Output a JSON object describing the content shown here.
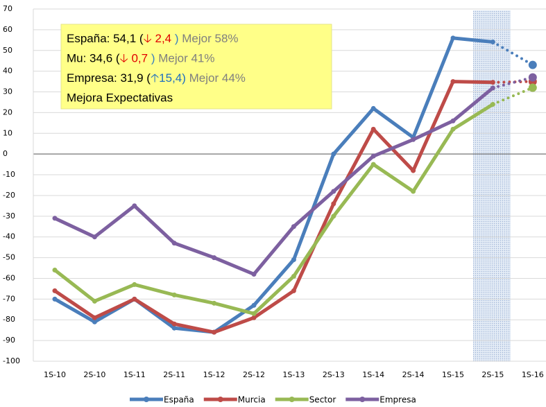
{
  "chart_data": {
    "type": "line",
    "categories": [
      "1S-10",
      "2S-10",
      "1S-11",
      "2S-11",
      "1S-12",
      "2S-12",
      "1S-13",
      "2S-13",
      "1S-14",
      "2S-14",
      "1S-15",
      "2S-15",
      "1S-16"
    ],
    "series": [
      {
        "name": "España",
        "color": "#4a7ebb",
        "values": [
          -70,
          -81,
          -70,
          -84,
          -86,
          -73,
          -51,
          0,
          22,
          8,
          56,
          54.1,
          43
        ]
      },
      {
        "name": "Murcia",
        "color": "#be4b48",
        "values": [
          -66,
          -79,
          -70,
          -82,
          -86,
          -79,
          -66,
          -24,
          12,
          -8,
          35,
          34.6,
          35
        ]
      },
      {
        "name": "Sector",
        "color": "#98b954",
        "values": [
          -56,
          -71,
          -63,
          -68,
          -72,
          -77,
          -59,
          -30,
          -5,
          -18,
          12,
          24,
          32
        ]
      },
      {
        "name": "Empresa",
        "color": "#7d60a0",
        "values": [
          -31,
          -40,
          -25,
          -43,
          -50,
          -58,
          -35,
          -18,
          -1,
          7,
          16,
          31.9,
          37
        ]
      }
    ],
    "ylim": [
      -100,
      70
    ],
    "yticks": [
      -100,
      -90,
      -80,
      -70,
      -60,
      -50,
      -40,
      -30,
      -20,
      -10,
      0,
      10,
      20,
      30,
      40,
      50,
      60,
      70
    ],
    "grid": true,
    "legend": "bottom",
    "annotation": {
      "lines": [
        [
          {
            "text": "España: 54,1 (",
            "color": "#000000"
          },
          {
            "text": "🡣 2,4",
            "color": "#e00000"
          },
          {
            "text": " )",
            "color": "#3a7fc0"
          },
          {
            "text": " Mejor 58%",
            "color": "#7f7f7f"
          }
        ],
        [
          {
            "text": "Mu: 34,6 (",
            "color": "#000000"
          },
          {
            "text": "🡣 0,7",
            "color": "#e00000"
          },
          {
            "text": " )",
            "color": "#3a7fc0"
          },
          {
            "text": " Mejor 41%",
            "color": "#7f7f7f"
          }
        ],
        [
          {
            "text": "Empresa: 31,9 (",
            "color": "#000000"
          },
          {
            "text": "🡡15,4)",
            "color": "#1f6fc0"
          },
          {
            "text": " Mejor 44%",
            "color": "#7f7f7f"
          }
        ],
        [
          {
            "text": "Mejora Expectativas",
            "color": "#000000"
          }
        ]
      ]
    }
  }
}
